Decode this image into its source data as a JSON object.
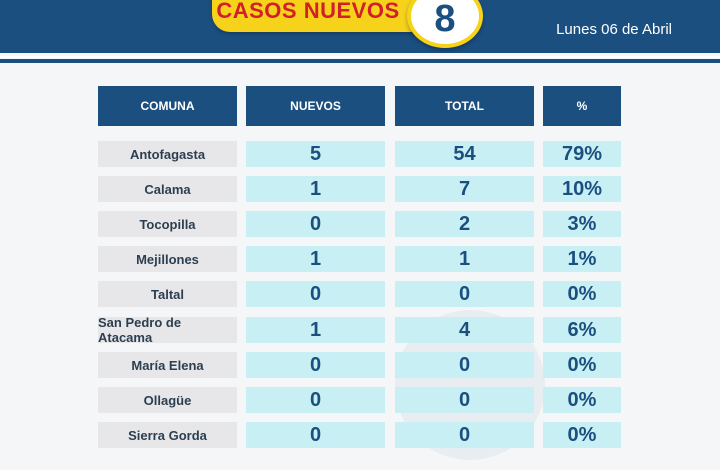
{
  "banner": {
    "label": "CASOS NUEVOS",
    "count": "8",
    "date": "Lunes 06 de Abril"
  },
  "colors": {
    "brand_blue": "#1b4f80",
    "accent_yellow": "#f6d31a",
    "accent_red": "#d21f2c",
    "cell_cyan": "#c8f0f4",
    "cell_gray": "#e7e7e9"
  },
  "table": {
    "headers": [
      "COMUNA",
      "NUEVOS",
      "TOTAL",
      "%"
    ],
    "rows": [
      {
        "comuna": "Antofagasta",
        "nuevos": "5",
        "total": "54",
        "pct": "79%"
      },
      {
        "comuna": "Calama",
        "nuevos": "1",
        "total": "7",
        "pct": "10%"
      },
      {
        "comuna": "Tocopilla",
        "nuevos": "0",
        "total": "2",
        "pct": "3%"
      },
      {
        "comuna": "Mejillones",
        "nuevos": "1",
        "total": "1",
        "pct": "1%"
      },
      {
        "comuna": "Taltal",
        "nuevos": "0",
        "total": "0",
        "pct": "0%"
      },
      {
        "comuna": "San Pedro de Atacama",
        "nuevos": "1",
        "total": "4",
        "pct": "6%"
      },
      {
        "comuna": "María Elena",
        "nuevos": "0",
        "total": "0",
        "pct": "0%"
      },
      {
        "comuna": "Ollagüe",
        "nuevos": "0",
        "total": "0",
        "pct": "0%"
      },
      {
        "comuna": "Sierra Gorda",
        "nuevos": "0",
        "total": "0",
        "pct": "0%"
      }
    ]
  }
}
